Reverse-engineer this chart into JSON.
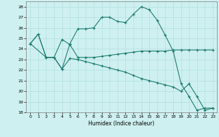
{
  "xlabel": "Humidex (Indice chaleur)",
  "bg_color": "#cff0f0",
  "grid_color": "#b0dede",
  "line_color": "#1a7a6e",
  "ylim": [
    18,
    28.5
  ],
  "xlim": [
    -0.5,
    23.5
  ],
  "yticks": [
    18,
    19,
    20,
    21,
    22,
    23,
    24,
    25,
    26,
    27,
    28
  ],
  "xticks": [
    0,
    1,
    2,
    3,
    4,
    5,
    6,
    7,
    8,
    9,
    10,
    11,
    12,
    13,
    14,
    15,
    16,
    17,
    18,
    19,
    20,
    21,
    22,
    23
  ],
  "series1_x": [
    0,
    1,
    2,
    3,
    4,
    5,
    6,
    7,
    8,
    9,
    10,
    11,
    12,
    13,
    14,
    15,
    16,
    17,
    18,
    19,
    20,
    21,
    22,
    23
  ],
  "series1_y": [
    24.5,
    25.4,
    23.2,
    23.2,
    22.1,
    24.5,
    25.9,
    25.9,
    26.0,
    27.0,
    27.0,
    26.6,
    26.5,
    27.3,
    28.0,
    27.7,
    26.7,
    25.3,
    23.8,
    20.7,
    19.5,
    18.2,
    18.4,
    18.4
  ],
  "series2_x": [
    0,
    1,
    2,
    3,
    4,
    5,
    6,
    7,
    8,
    9,
    10,
    11,
    12,
    13,
    14,
    15,
    16,
    17,
    18,
    19,
    20,
    21,
    22,
    23
  ],
  "series2_y": [
    24.5,
    25.4,
    23.2,
    23.2,
    24.9,
    24.4,
    23.2,
    23.2,
    23.2,
    23.3,
    23.4,
    23.5,
    23.6,
    23.7,
    23.8,
    23.8,
    23.8,
    23.8,
    23.9,
    23.9,
    23.9,
    23.9,
    23.9,
    23.9
  ],
  "series3_x": [
    0,
    2,
    3,
    4,
    5,
    6,
    7,
    8,
    9,
    10,
    11,
    12,
    13,
    14,
    15,
    16,
    17,
    18,
    19,
    20,
    21,
    22,
    23
  ],
  "series3_y": [
    24.5,
    23.2,
    23.2,
    22.1,
    23.1,
    23.0,
    22.8,
    22.6,
    22.4,
    22.2,
    22.0,
    21.8,
    21.5,
    21.2,
    21.0,
    20.8,
    20.6,
    20.4,
    20.0,
    20.7,
    19.5,
    18.2,
    18.4
  ]
}
